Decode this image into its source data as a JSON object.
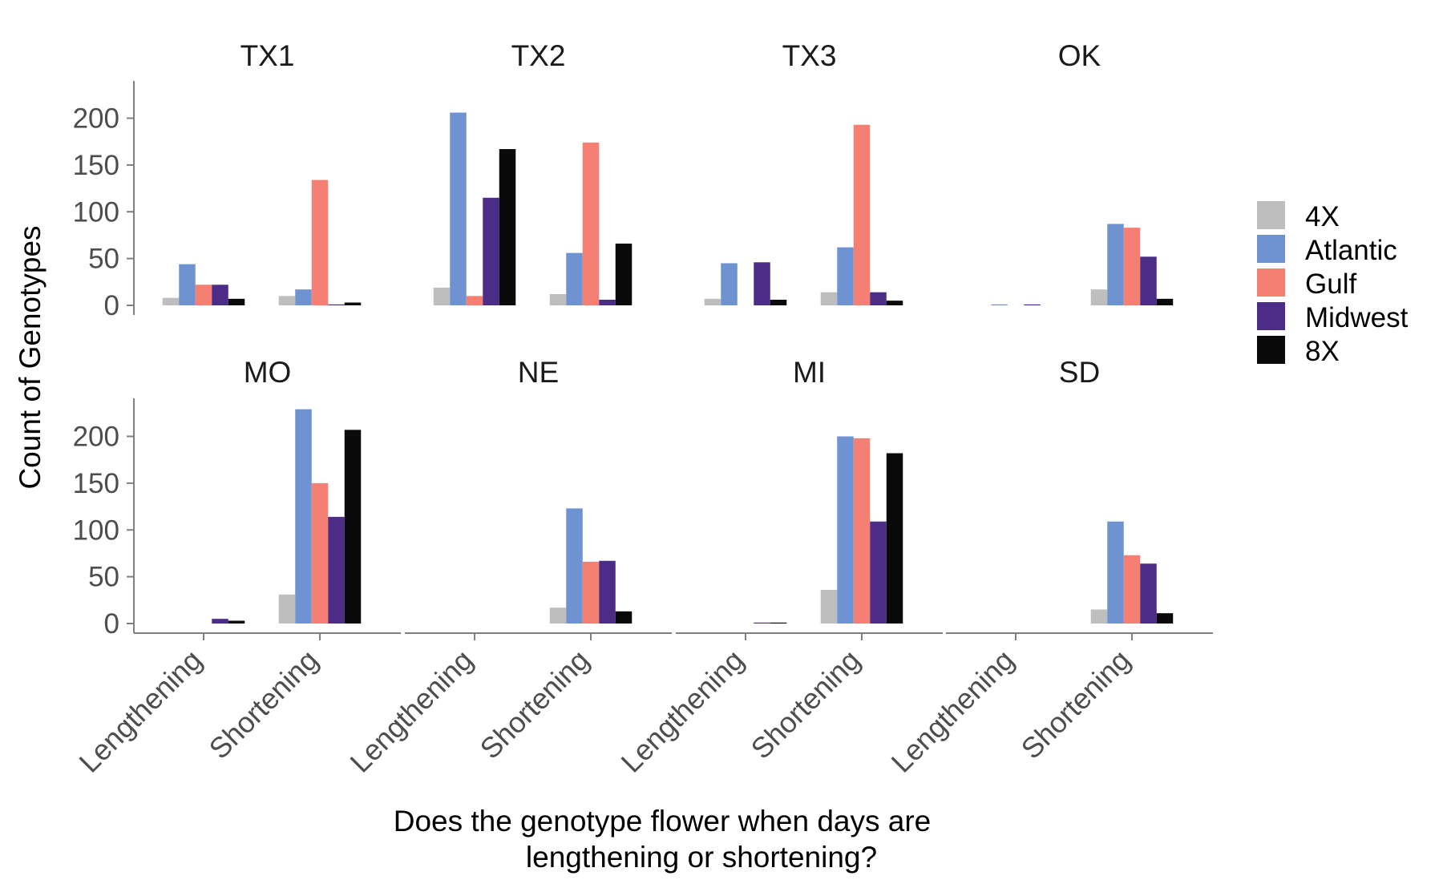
{
  "chart_data": {
    "type": "bar",
    "layout": "faceted grouped bar chart, 2 rows x 4 columns",
    "ylabel": "Count of Genotypes",
    "xlabel_lines": [
      "Does the genotype flower when days are",
      "lengthening or shortening?"
    ],
    "ylim": [
      0,
      240
    ],
    "yticks": [
      0,
      50,
      100,
      150,
      200
    ],
    "categories": [
      "Lengthening",
      "Shortening"
    ],
    "legend": {
      "position": "right",
      "entries": [
        {
          "name": "4X",
          "color": "#bebebe"
        },
        {
          "name": "Atlantic",
          "color": "#6e93d0"
        },
        {
          "name": "Gulf",
          "color": "#f47f72"
        },
        {
          "name": "Midwest",
          "color": "#4b2c86"
        },
        {
          "name": "8X",
          "color": "#0a0a0a"
        }
      ]
    },
    "panels": [
      {
        "title": "TX1",
        "values": {
          "Lengthening": [
            8,
            44,
            22,
            22,
            7
          ],
          "Shortening": [
            10,
            17,
            134,
            1,
            3
          ]
        }
      },
      {
        "title": "TX2",
        "values": {
          "Lengthening": [
            19,
            206,
            10,
            115,
            167
          ],
          "Shortening": [
            12,
            56,
            174,
            6,
            66
          ]
        }
      },
      {
        "title": "TX3",
        "values": {
          "Lengthening": [
            7,
            45,
            0,
            46,
            6
          ],
          "Shortening": [
            14,
            62,
            193,
            14,
            5
          ]
        }
      },
      {
        "title": "OK",
        "values": {
          "Lengthening": [
            0,
            1,
            0,
            1,
            0
          ],
          "Shortening": [
            17,
            87,
            83,
            52,
            7
          ]
        }
      },
      {
        "title": "MO",
        "values": {
          "Lengthening": [
            0,
            0,
            0,
            5,
            3
          ],
          "Shortening": [
            31,
            229,
            150,
            114,
            207
          ]
        }
      },
      {
        "title": "NE",
        "values": {
          "Lengthening": [
            0,
            0,
            0,
            0,
            0
          ],
          "Shortening": [
            17,
            123,
            66,
            67,
            13
          ]
        }
      },
      {
        "title": "MI",
        "values": {
          "Lengthening": [
            0,
            0,
            0,
            1,
            1
          ],
          "Shortening": [
            36,
            200,
            198,
            109,
            182
          ]
        }
      },
      {
        "title": "SD",
        "values": {
          "Lengthening": [
            0,
            0,
            0,
            0,
            0
          ],
          "Shortening": [
            15,
            109,
            73,
            64,
            11
          ]
        }
      }
    ]
  }
}
